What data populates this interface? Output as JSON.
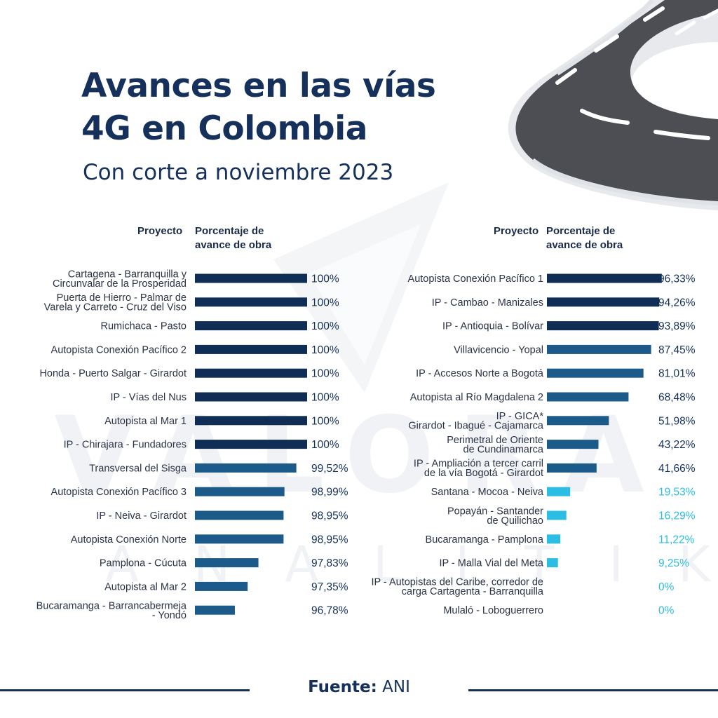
{
  "header": {
    "title_line1": "Avances en las vías",
    "title_line2": "4G en Colombia",
    "subtitle": "Con corte a noviembre 2023"
  },
  "watermark": {
    "big": "VALORA",
    "small": "ANALITIK"
  },
  "columns": {
    "project_label": "Proyecto",
    "percent_label_line1": "Porcentaje de",
    "percent_label_line2": "avance de obra"
  },
  "footer": {
    "source_label": "Fuente:",
    "source_value": "ANI"
  },
  "colors": {
    "title": "#14305b",
    "bar_dark": "#0f2d55",
    "bar_mid": "#1c5a8a",
    "bar_light": "#2bbde3",
    "label_dark": "#14305b",
    "label_light": "#2bbde3"
  },
  "chart_data": [
    {
      "type": "bar",
      "orientation": "horizontal",
      "xlabel": "Porcentaje de avance de obra",
      "ylabel": "Proyecto",
      "xlim": [
        95,
        100
      ],
      "categories": [
        [
          "Cartagena - Barranquilla y",
          "Circunvalar de la Prosperidad"
        ],
        [
          "Puerta de Hierro - Palmar de",
          "Varela y Carreto - Cruz del Viso"
        ],
        [
          "Rumichaca - Pasto"
        ],
        [
          "Autopista Conexión Pacífico 2"
        ],
        [
          "Honda - Puerto Salgar - Girardot"
        ],
        [
          "IP - Vías del Nus"
        ],
        [
          "Autopista al Mar 1"
        ],
        [
          "IP - Chirajara - Fundadores"
        ],
        [
          "Transversal del Sisga"
        ],
        [
          "Autopista Conexión Pacífico 3"
        ],
        [
          "IP - Neiva - Girardot"
        ],
        [
          "Autopista Conexión Norte"
        ],
        [
          "Pamplona - Cúcuta"
        ],
        [
          "Autopista al Mar 2"
        ],
        [
          "Bucaramanga - Barrancabermeja",
          "- Yondó"
        ]
      ],
      "values": [
        100,
        100,
        100,
        100,
        100,
        100,
        100,
        100,
        99.52,
        98.99,
        98.95,
        98.95,
        97.83,
        97.35,
        96.78
      ],
      "value_labels": [
        "100%",
        "100%",
        "100%",
        "100%",
        "100%",
        "100%",
        "100%",
        "100%",
        "99,52%",
        "98,99%",
        "98,95%",
        "98,95%",
        "97,83%",
        "97,35%",
        "96,78%"
      ]
    },
    {
      "type": "bar",
      "orientation": "horizontal",
      "xlabel": "Porcentaje de avance de obra",
      "ylabel": "Proyecto",
      "xlim": [
        0,
        100
      ],
      "categories": [
        [
          "Autopista Conexión Pacífico 1"
        ],
        [
          "IP - Cambao - Manizales"
        ],
        [
          "IP - Antioquia - Bolívar"
        ],
        [
          "Villavicencio - Yopal"
        ],
        [
          "IP - Accesos Norte a Bogotá"
        ],
        [
          "Autopista al Río Magdalena 2"
        ],
        [
          "IP - GICA*",
          "Girardot - Ibagué - Cajamarca"
        ],
        [
          "Perimetral de Oriente",
          "de Cundinamarca"
        ],
        [
          "IP - Ampliación a tercer carril",
          "de la vía Bogotá - Girardot"
        ],
        [
          "Santana - Mocoa - Neiva"
        ],
        [
          "Popayán - Santander",
          "de Quilichao"
        ],
        [
          "Bucaramanga - Pamplona"
        ],
        [
          "IP - Malla Vial del Meta"
        ],
        [
          "IP - Autopistas del Caribe, corredor de",
          "carga Cartagenta - Barranquilla"
        ],
        [
          "Mulaló - Loboguerrero"
        ]
      ],
      "values": [
        96.33,
        94.26,
        93.89,
        87.45,
        81.01,
        68.48,
        51.98,
        43.22,
        41.66,
        19.53,
        16.29,
        11.22,
        9.25,
        0,
        0
      ],
      "value_labels": [
        "96,33%",
        "94,26%",
        "93,89%",
        "87,45%",
        "81,01%",
        "68,48%",
        "51,98%",
        "43,22%",
        "41,66%",
        "19,53%",
        "16,29%",
        "11,22%",
        "9,25%",
        "0%",
        "0%"
      ]
    }
  ]
}
